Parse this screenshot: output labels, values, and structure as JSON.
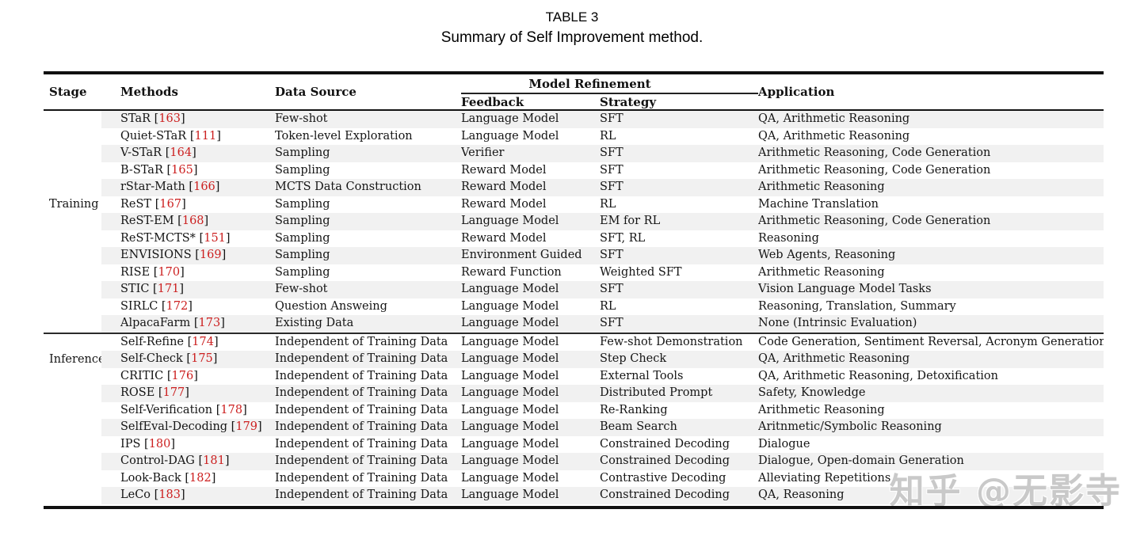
{
  "title": {
    "line1": "TABLE 3",
    "line2": "Summary of Self Improvement method."
  },
  "table": {
    "headers": {
      "stage": "Stage",
      "methods": "Methods",
      "data_source": "Data Source",
      "model_refinement": "Model Refinement",
      "feedback": "Feedback",
      "strategy": "Strategy",
      "application": "Application"
    },
    "sections": [
      {
        "stage": "Training",
        "rows": [
          {
            "method": "STaR",
            "ref": "163",
            "data_source": "Few-shot",
            "feedback": "Language Model",
            "strategy": "SFT",
            "application": "QA, Arithmetic Reasoning"
          },
          {
            "method": "Quiet-STaR",
            "ref": "111",
            "data_source": "Token-level Exploration",
            "feedback": "Language Model",
            "strategy": "RL",
            "application": "QA, Arithmetic Reasoning"
          },
          {
            "method": "V-STaR",
            "ref": "164",
            "data_source": "Sampling",
            "feedback": "Verifier",
            "strategy": "SFT",
            "application": "Arithmetic Reasoning, Code Generation"
          },
          {
            "method": "B-STaR",
            "ref": "165",
            "data_source": "Sampling",
            "feedback": "Reward Model",
            "strategy": "SFT",
            "application": "Arithmetic Reasoning, Code Generation"
          },
          {
            "method": "rStar-Math",
            "ref": "166",
            "data_source": "MCTS Data Construction",
            "feedback": "Reward Model",
            "strategy": "SFT",
            "application": "Arithmetic Reasoning"
          },
          {
            "method": "ReST",
            "ref": "167",
            "data_source": "Sampling",
            "feedback": "Reward Model",
            "strategy": "RL",
            "application": "Machine Translation"
          },
          {
            "method": "ReST-EM",
            "ref": "168",
            "data_source": "Sampling",
            "feedback": "Language Model",
            "strategy": "EM for RL",
            "application": "Arithmetic Reasoning, Code Generation"
          },
          {
            "method": "ReST-MCTS*",
            "ref": "151",
            "data_source": "Sampling",
            "feedback": "Reward Model",
            "strategy": "SFT, RL",
            "application": "Reasoning"
          },
          {
            "method": "ENVISIONS",
            "ref": "169",
            "data_source": "Sampling",
            "feedback": "Environment Guided",
            "strategy": "SFT",
            "application": "Web Agents, Reasoning"
          },
          {
            "method": "RISE",
            "ref": "170",
            "data_source": "Sampling",
            "feedback": "Reward Function",
            "strategy": "Weighted SFT",
            "application": "Arithmetic Reasoning"
          },
          {
            "method": "STIC",
            "ref": "171",
            "data_source": "Few-shot",
            "feedback": "Language Model",
            "strategy": "SFT",
            "application": "Vision Language Model Tasks"
          },
          {
            "method": "SIRLC",
            "ref": "172",
            "data_source": "Question Answeing",
            "feedback": "Language Model",
            "strategy": "RL",
            "application": "Reasoning, Translation, Summary"
          },
          {
            "method": "AlpacaFarm",
            "ref": "173",
            "data_source": "Existing Data",
            "feedback": "Language Model",
            "strategy": "SFT",
            "application": "None (Intrinsic Evaluation)"
          }
        ]
      },
      {
        "stage": "Inference",
        "rows": [
          {
            "method": "Self-Refine",
            "ref": "174",
            "data_source": "Independent of Training Data",
            "feedback": "Language Model",
            "strategy": "Few-shot Demonstration",
            "application": "Code Generation, Sentiment Reversal, Acronym Generation"
          },
          {
            "method": "Self-Check",
            "ref": "175",
            "data_source": "Independent of Training Data",
            "feedback": "Language Model",
            "strategy": "Step Check",
            "application": "QA, Arithmetic Reasoning"
          },
          {
            "method": "CRITIC",
            "ref": "176",
            "data_source": "Independent of Training Data",
            "feedback": "Language Model",
            "strategy": "External Tools",
            "application": "QA, Arithmetic Reasoning, Detoxification"
          },
          {
            "method": "ROSE",
            "ref": "177",
            "data_source": "Independent of Training Data",
            "feedback": "Language Model",
            "strategy": "Distributed Prompt",
            "application": "Safety, Knowledge"
          },
          {
            "method": "Self-Verification",
            "ref": "178",
            "data_source": "Independent of Training Data",
            "feedback": "Language Model",
            "strategy": "Re-Ranking",
            "application": "Arithmetic Reasoning"
          },
          {
            "method": "SelfEval-Decoding",
            "ref": "179",
            "data_source": "Independent of Training Data",
            "feedback": "Language Model",
            "strategy": "Beam Search",
            "application": "Aritnmetic/Symbolic Reasoning"
          },
          {
            "method": "IPS",
            "ref": "180",
            "data_source": "Independent of Training Data",
            "feedback": "Language Model",
            "strategy": "Constrained Decoding",
            "application": "Dialogue"
          },
          {
            "method": "Control-DAG",
            "ref": "181",
            "data_source": "Independent of Training Data",
            "feedback": "Language Model",
            "strategy": "Constrained Decoding",
            "application": "Dialogue, Open-domain Generation"
          },
          {
            "method": "Look-Back",
            "ref": "182",
            "data_source": "Independent of Training Data",
            "feedback": "Language Model",
            "strategy": "Contrastive Decoding",
            "application": "Alleviating Repetitions"
          },
          {
            "method": "LeCo",
            "ref": "183",
            "data_source": "Independent of Training Data",
            "feedback": "Language Model",
            "strategy": "Constrained Decoding",
            "application": "QA, Reasoning"
          }
        ]
      }
    ]
  },
  "watermark": "知乎 @无影寺",
  "colors": {
    "citation_red": "#cc2020",
    "row_shade": "#f1f1f1"
  }
}
